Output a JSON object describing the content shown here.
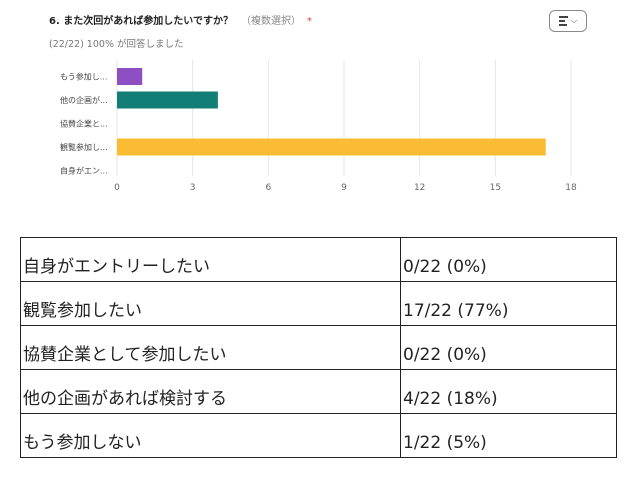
{
  "question": {
    "title": "6. また次回があれば参加したいですか？",
    "note": "（複数選択）",
    "required_mark": "*",
    "response_summary": "(22/22) 100% が回答しました"
  },
  "chart_data": {
    "type": "bar",
    "orientation": "horizontal",
    "categories": [
      "もう参加し...",
      "他の企画が...",
      "協賛企業と...",
      "観覧参加し...",
      "自身がエン..."
    ],
    "values": [
      1,
      4,
      0,
      17,
      0
    ],
    "colors": [
      "#8e4fc3",
      "#137e78",
      "#137e78",
      "#fbbc34",
      "#fbbc34"
    ],
    "xlim": [
      0,
      18
    ],
    "xticks": [
      0,
      3,
      6,
      9,
      12,
      15,
      18
    ],
    "grid": true,
    "legend": "none"
  },
  "table": {
    "rows": [
      {
        "label": "自身がエントリーしたい",
        "value": "0/22 (0%)"
      },
      {
        "label": "観覧参加したい",
        "value": "17/22 (77%)"
      },
      {
        "label": "協賛企業として参加したい",
        "value": "0/22 (0%)"
      },
      {
        "label": "他の企画があれば検討する",
        "value": "4/22 (18%)"
      },
      {
        "label": "もう参加しない",
        "value": "1/22 (5%)"
      }
    ]
  }
}
